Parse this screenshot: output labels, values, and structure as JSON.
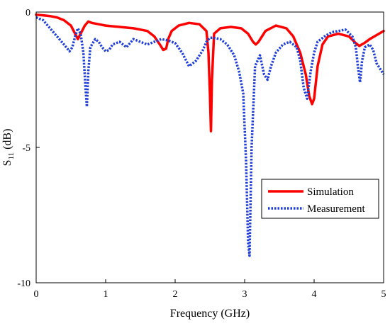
{
  "chart_data": {
    "type": "line",
    "title": "",
    "xlabel": "Frequency (GHz)",
    "ylabel_base": "S",
    "ylabel_sub": "11",
    "ylabel_unit": " (dB)",
    "xlim": [
      0,
      5
    ],
    "ylim": [
      -10,
      0
    ],
    "xticks": [
      0,
      1,
      2,
      3,
      4,
      5
    ],
    "yticks": [
      0,
      -5,
      -10
    ],
    "xtick_labels": [
      "0",
      "1",
      "2",
      "3",
      "4",
      "5"
    ],
    "ytick_labels": [
      "0",
      "-5",
      "-10"
    ],
    "grid": false,
    "legend_position": "center-right",
    "series": [
      {
        "name": "Simulation",
        "color": "#ff0000",
        "style": "solid",
        "x": [
          0,
          0.1,
          0.2,
          0.3,
          0.4,
          0.5,
          0.55,
          0.6,
          0.63,
          0.66,
          0.7,
          0.75,
          0.8,
          0.9,
          1.0,
          1.2,
          1.4,
          1.6,
          1.7,
          1.78,
          1.83,
          1.87,
          1.9,
          1.95,
          2.05,
          2.2,
          2.35,
          2.45,
          2.48,
          2.5,
          2.515,
          2.53,
          2.56,
          2.65,
          2.8,
          2.95,
          3.05,
          3.12,
          3.16,
          3.2,
          3.3,
          3.45,
          3.6,
          3.7,
          3.8,
          3.88,
          3.93,
          3.97,
          4.0,
          4.05,
          4.12,
          4.2,
          4.35,
          4.5,
          4.6,
          4.65,
          4.72,
          4.8,
          4.9,
          5.0
        ],
        "y": [
          -0.1,
          -0.12,
          -0.15,
          -0.2,
          -0.3,
          -0.5,
          -0.75,
          -1.0,
          -0.85,
          -0.7,
          -0.5,
          -0.35,
          -0.4,
          -0.45,
          -0.5,
          -0.55,
          -0.6,
          -0.7,
          -0.9,
          -1.2,
          -1.4,
          -1.35,
          -1.0,
          -0.7,
          -0.5,
          -0.4,
          -0.45,
          -0.7,
          -1.5,
          -3.0,
          -4.4,
          -2.5,
          -0.8,
          -0.6,
          -0.55,
          -0.6,
          -0.8,
          -1.1,
          -1.2,
          -1.1,
          -0.7,
          -0.5,
          -0.6,
          -0.9,
          -1.5,
          -2.3,
          -3.1,
          -3.4,
          -3.2,
          -2.0,
          -1.2,
          -0.9,
          -0.8,
          -0.9,
          -1.15,
          -1.25,
          -1.15,
          -1.0,
          -0.85,
          -0.7
        ]
      },
      {
        "name": "Measurement",
        "color": "#1f3fd8",
        "style": "dotted",
        "x": [
          0,
          0.1,
          0.2,
          0.3,
          0.4,
          0.48,
          0.52,
          0.56,
          0.6,
          0.64,
          0.68,
          0.71,
          0.73,
          0.75,
          0.78,
          0.85,
          0.9,
          0.95,
          1.0,
          1.05,
          1.1,
          1.2,
          1.3,
          1.4,
          1.5,
          1.6,
          1.7,
          1.8,
          1.9,
          2.0,
          2.1,
          2.2,
          2.3,
          2.4,
          2.45,
          2.5,
          2.55,
          2.65,
          2.75,
          2.85,
          2.92,
          2.98,
          3.02,
          3.05,
          3.07,
          3.1,
          3.15,
          3.22,
          3.28,
          3.33,
          3.38,
          3.45,
          3.55,
          3.65,
          3.75,
          3.8,
          3.85,
          3.9,
          3.95,
          4.0,
          4.05,
          4.15,
          4.25,
          4.35,
          4.45,
          4.55,
          4.6,
          4.63,
          4.66,
          4.69,
          4.73,
          4.8,
          4.85,
          4.9,
          4.95,
          5.0
        ],
        "y": [
          -0.2,
          -0.3,
          -0.6,
          -0.9,
          -1.2,
          -1.45,
          -1.3,
          -0.9,
          -0.6,
          -0.8,
          -1.5,
          -2.8,
          -3.5,
          -2.2,
          -1.3,
          -1.0,
          -1.1,
          -1.3,
          -1.45,
          -1.4,
          -1.2,
          -1.1,
          -1.3,
          -1.0,
          -1.1,
          -1.2,
          -1.1,
          -1.0,
          -1.05,
          -1.15,
          -1.5,
          -2.0,
          -1.8,
          -1.4,
          -1.1,
          -0.95,
          -0.95,
          -1.0,
          -1.2,
          -1.6,
          -2.2,
          -3.0,
          -5.5,
          -8.5,
          -9.0,
          -5.0,
          -2.0,
          -1.6,
          -2.3,
          -2.5,
          -2.0,
          -1.5,
          -1.2,
          -1.1,
          -1.3,
          -1.8,
          -2.8,
          -3.2,
          -2.2,
          -1.5,
          -1.1,
          -0.9,
          -0.75,
          -0.7,
          -0.65,
          -0.9,
          -1.3,
          -2.0,
          -2.6,
          -1.8,
          -1.3,
          -1.2,
          -1.4,
          -1.9,
          -2.1,
          -2.3
        ]
      }
    ]
  }
}
